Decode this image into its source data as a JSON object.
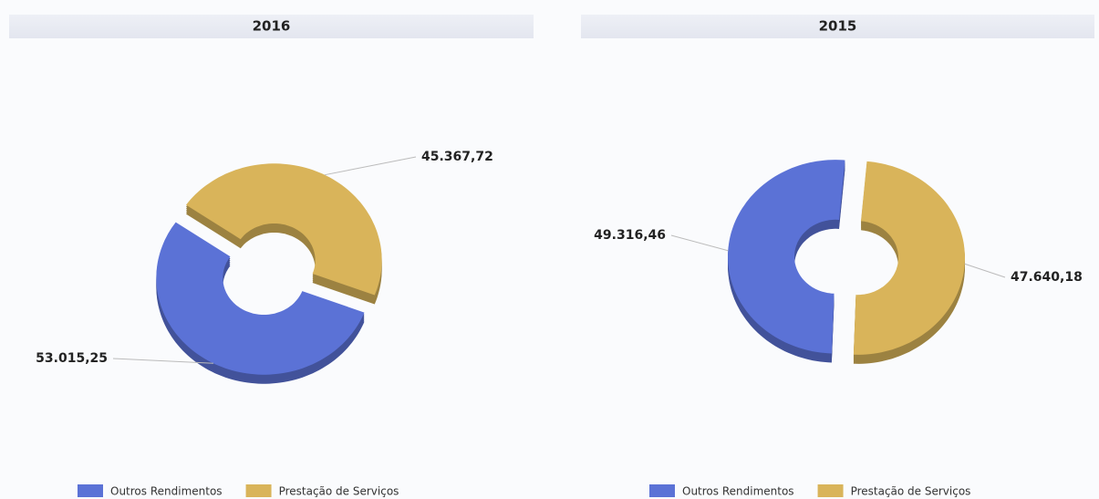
{
  "chart_data": [
    {
      "type": "donut",
      "title": "2016",
      "categories": [
        "Outros Rendimentos",
        "Prestação de Serviços"
      ],
      "values": [
        53015.25,
        45367.72
      ],
      "value_labels": [
        "53.015,25",
        "45.367,72"
      ],
      "colors": [
        "#5b72d6",
        "#d9b45a"
      ],
      "legend": "bottom"
    },
    {
      "type": "donut",
      "title": "2015",
      "categories": [
        "Outros Rendimentos",
        "Prestação de Serviços"
      ],
      "values": [
        49316.46,
        47640.18
      ],
      "value_labels": [
        "49.316,46",
        "47.640,18"
      ],
      "colors": [
        "#5b72d6",
        "#d9b45a"
      ],
      "legend": "bottom"
    }
  ]
}
